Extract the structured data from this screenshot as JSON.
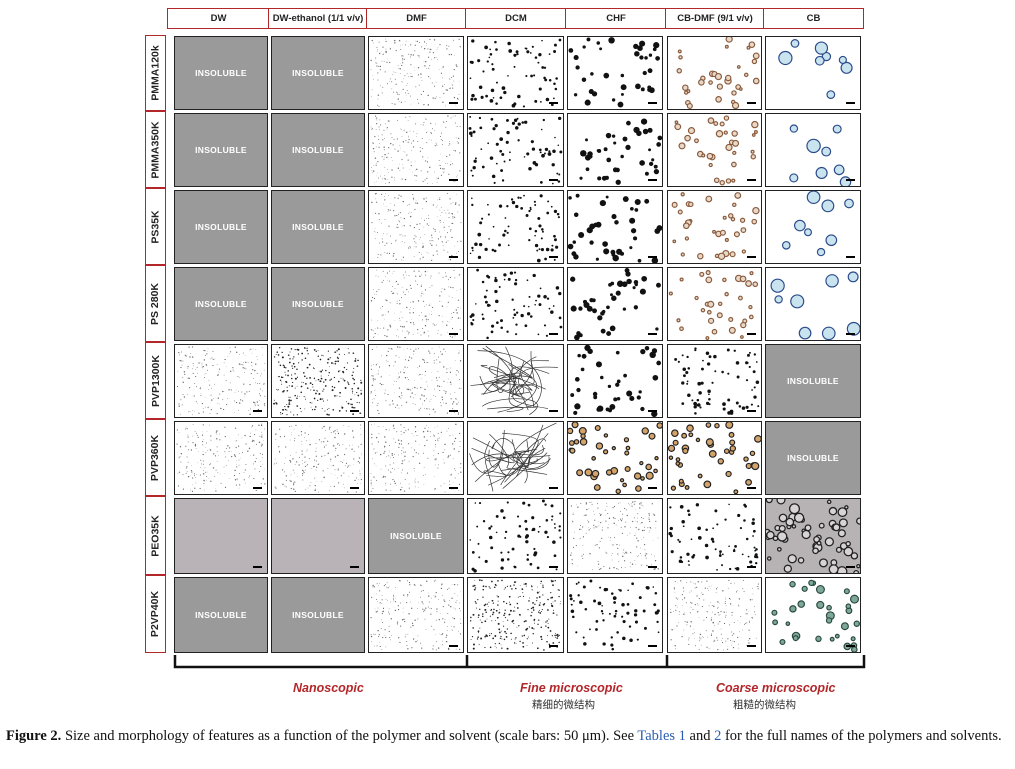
{
  "figure": {
    "columns": [
      "DW",
      "DW-ethanol (1/1 v/v)",
      "DMF",
      "DCM",
      "CHF",
      "CB-DMF (9/1 v/v)",
      "CB"
    ],
    "rows": [
      "PMMA120k",
      "PMMA350K",
      "PS35K",
      "PS 280K",
      "PVP1300K",
      "PVP360K",
      "PEO35K",
      "P2VP40K"
    ],
    "insoluble_label": "INSOLUBLE",
    "cells": [
      [
        "insoluble",
        "insoluble",
        "fine_dots",
        "dots",
        "big_dots",
        "rings",
        "big_rings"
      ],
      [
        "insoluble",
        "insoluble",
        "fine_dots",
        "dots",
        "big_dots",
        "rings",
        "big_rings"
      ],
      [
        "insoluble",
        "insoluble",
        "fine_dots",
        "dots",
        "big_dots",
        "rings",
        "big_rings"
      ],
      [
        "insoluble",
        "insoluble",
        "fine_dots",
        "dots",
        "big_dots",
        "rings",
        "big_rings"
      ],
      [
        "fine_dots",
        "dense_dots",
        "fine_dots",
        "fibers",
        "big_dots",
        "dots",
        "insoluble"
      ],
      [
        "fine_dots",
        "fine_dots",
        "fine_dots",
        "fibers",
        "brown_dots",
        "brown_dots",
        "insoluble"
      ],
      [
        "gray",
        "gray",
        "insoluble",
        "dots",
        "fine_dots",
        "dots",
        "gray_rings"
      ],
      [
        "insoluble",
        "insoluble",
        "fine_dots",
        "dense_dots",
        "dots",
        "fine_dots",
        "green_drops"
      ]
    ],
    "categories": [
      {
        "label": "Nanoscopic",
        "sub": ""
      },
      {
        "label": "Fine microscopic",
        "sub": "精细的微结构"
      },
      {
        "label": "Coarse microscopic",
        "sub": "粗糙的微结构"
      }
    ],
    "colors": {
      "accent": "#b3262a",
      "insoluble": "#9a9a9a",
      "link": "#2a5db0"
    }
  },
  "caption": {
    "lead": "Figure 2.",
    "text_1": " Size and morphology of features as a function of the polymer and solvent (scale bars: 50 μm). See ",
    "ref_1": "Tables 1",
    "text_2": " and ",
    "ref_2": "2",
    "text_3": " for the full names of the polymers and solvents."
  }
}
